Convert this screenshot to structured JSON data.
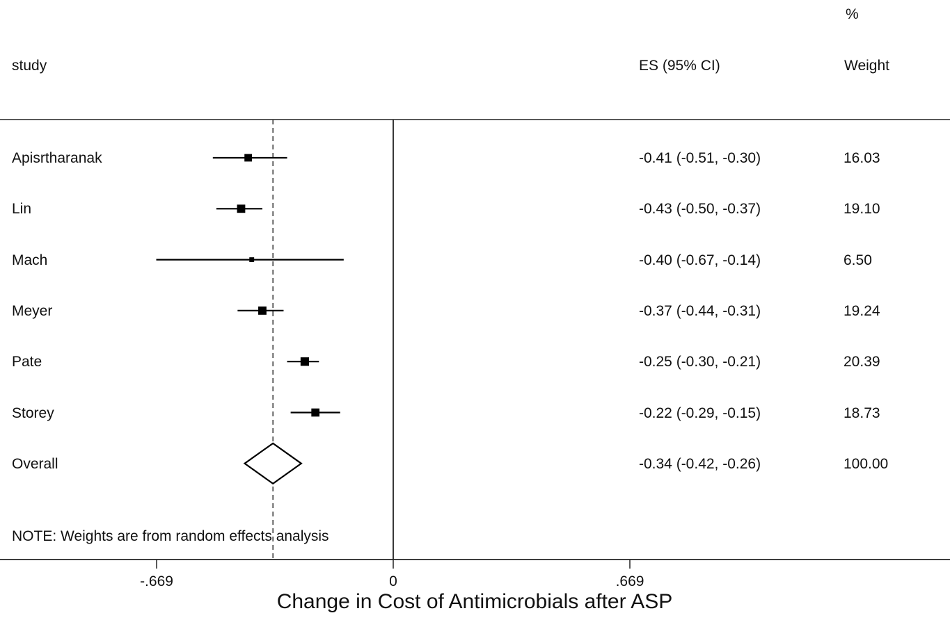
{
  "header": {
    "study_label": "study",
    "es_label": "ES (95% CI)",
    "weight_pct_label": "%",
    "weight_label": "Weight"
  },
  "note": "NOTE: Weights are from random effects analysis",
  "chart_data": {
    "type": "forest",
    "xlabel": "Change in Cost of Antimicrobials after ASP",
    "xticks": [
      -0.669,
      0,
      0.669
    ],
    "xtick_labels": [
      "-.669",
      "0",
      ".669"
    ],
    "xlim": [
      -1.1,
      1.5
    ],
    "null_line": 0,
    "pooled_reference_line": -0.34,
    "studies": [
      {
        "name": "Apisrtharanak",
        "es": -0.41,
        "lo": -0.51,
        "hi": -0.3,
        "es_text": "-0.41 (-0.51, -0.30)",
        "weight": 16.03,
        "weight_text": "16.03"
      },
      {
        "name": "Lin",
        "es": -0.43,
        "lo": -0.5,
        "hi": -0.37,
        "es_text": "-0.43 (-0.50, -0.37)",
        "weight": 19.1,
        "weight_text": "19.10"
      },
      {
        "name": "Mach",
        "es": -0.4,
        "lo": -0.67,
        "hi": -0.14,
        "es_text": "-0.40 (-0.67, -0.14)",
        "weight": 6.5,
        "weight_text": "6.50"
      },
      {
        "name": "Meyer",
        "es": -0.37,
        "lo": -0.44,
        "hi": -0.31,
        "es_text": "-0.37 (-0.44, -0.31)",
        "weight": 19.24,
        "weight_text": "19.24"
      },
      {
        "name": "Pate",
        "es": -0.25,
        "lo": -0.3,
        "hi": -0.21,
        "es_text": "-0.25 (-0.30, -0.21)",
        "weight": 20.39,
        "weight_text": "20.39"
      },
      {
        "name": "Storey",
        "es": -0.22,
        "lo": -0.29,
        "hi": -0.15,
        "es_text": "-0.22 (-0.29, -0.15)",
        "weight": 18.73,
        "weight_text": "18.73"
      }
    ],
    "overall": {
      "name": "Overall",
      "es": -0.34,
      "lo": -0.42,
      "hi": -0.26,
      "es_text": "-0.34 (-0.42, -0.26)",
      "weight": 100.0,
      "weight_text": "100.00"
    }
  }
}
